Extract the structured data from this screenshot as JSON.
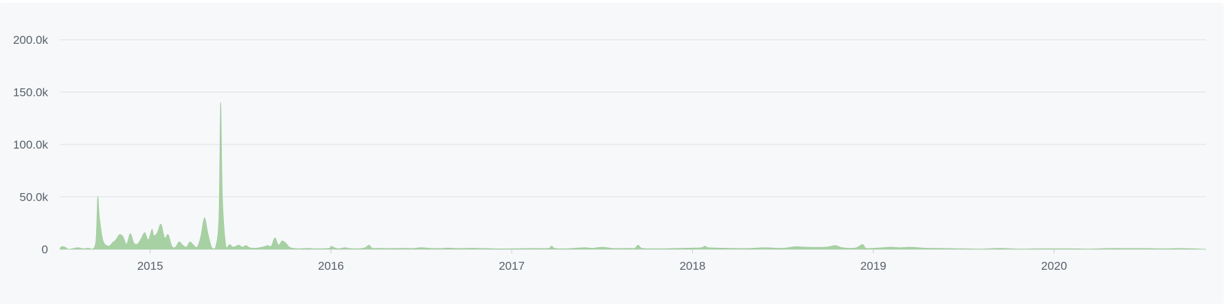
{
  "chart_data": {
    "type": "area",
    "title": "",
    "xlabel": "",
    "ylabel": "",
    "color": "#a8d1a3",
    "grid": true,
    "legend": "none",
    "xlim": [
      2014.5,
      2020.84
    ],
    "ylim": [
      0,
      200000
    ],
    "yticks": [
      {
        "value": 0,
        "label": "0"
      },
      {
        "value": 50000,
        "label": "50.0k"
      },
      {
        "value": 100000,
        "label": "100.0k"
      },
      {
        "value": 150000,
        "label": "150.0k"
      },
      {
        "value": 200000,
        "label": "200.0k"
      }
    ],
    "xticks": [
      {
        "value": 2015,
        "label": "2015"
      },
      {
        "value": 2016,
        "label": "2016"
      },
      {
        "value": 2017,
        "label": "2017"
      },
      {
        "value": 2018,
        "label": "2018"
      },
      {
        "value": 2019,
        "label": "2019"
      },
      {
        "value": 2020,
        "label": "2020"
      }
    ],
    "series": [
      {
        "points": [
          [
            2014.5,
            0
          ],
          [
            2014.51,
            2500
          ],
          [
            2014.53,
            2000
          ],
          [
            2014.55,
            0
          ],
          [
            2014.6,
            1500
          ],
          [
            2014.63,
            500
          ],
          [
            2014.66,
            1000
          ],
          [
            2014.68,
            0
          ],
          [
            2014.7,
            8000
          ],
          [
            2014.71,
            50000
          ],
          [
            2014.72,
            30000
          ],
          [
            2014.74,
            8000
          ],
          [
            2014.77,
            3000
          ],
          [
            2014.79,
            6000
          ],
          [
            2014.81,
            9000
          ],
          [
            2014.83,
            14000
          ],
          [
            2014.85,
            12000
          ],
          [
            2014.87,
            5000
          ],
          [
            2014.89,
            15000
          ],
          [
            2014.91,
            6000
          ],
          [
            2014.93,
            5000
          ],
          [
            2014.95,
            10000
          ],
          [
            2014.97,
            16000
          ],
          [
            2014.99,
            9000
          ],
          [
            2015.01,
            19000
          ],
          [
            2015.02,
            13000
          ],
          [
            2015.04,
            16000
          ],
          [
            2015.06,
            24000
          ],
          [
            2015.08,
            11000
          ],
          [
            2015.1,
            14000
          ],
          [
            2015.12,
            3000
          ],
          [
            2015.14,
            2000
          ],
          [
            2015.16,
            7000
          ],
          [
            2015.18,
            4000
          ],
          [
            2015.2,
            2000
          ],
          [
            2015.22,
            7000
          ],
          [
            2015.24,
            4000
          ],
          [
            2015.26,
            2000
          ],
          [
            2015.28,
            12000
          ],
          [
            2015.3,
            30000
          ],
          [
            2015.32,
            15000
          ],
          [
            2015.34,
            2000
          ],
          [
            2015.36,
            1000
          ],
          [
            2015.38,
            30000
          ],
          [
            2015.39,
            140000
          ],
          [
            2015.4,
            50000
          ],
          [
            2015.42,
            2000
          ],
          [
            2015.44,
            4500
          ],
          [
            2015.46,
            2000
          ],
          [
            2015.49,
            4000
          ],
          [
            2015.51,
            2000
          ],
          [
            2015.53,
            3500
          ],
          [
            2015.55,
            1500
          ],
          [
            2015.58,
            1000
          ],
          [
            2015.62,
            2000
          ],
          [
            2015.65,
            3500
          ],
          [
            2015.67,
            3000
          ],
          [
            2015.69,
            11000
          ],
          [
            2015.71,
            4000
          ],
          [
            2015.73,
            8000
          ],
          [
            2015.75,
            6000
          ],
          [
            2015.77,
            2000
          ],
          [
            2015.79,
            1000
          ],
          [
            2015.83,
            500
          ],
          [
            2015.87,
            1000
          ],
          [
            2015.91,
            500
          ],
          [
            2015.99,
            1000
          ],
          [
            2016.0,
            3000
          ],
          [
            2016.02,
            1500
          ],
          [
            2016.04,
            500
          ],
          [
            2016.08,
            1500
          ],
          [
            2016.1,
            800
          ],
          [
            2016.15,
            500
          ],
          [
            2016.19,
            1500
          ],
          [
            2016.21,
            4000
          ],
          [
            2016.23,
            1000
          ],
          [
            2016.27,
            1000
          ],
          [
            2016.33,
            800
          ],
          [
            2016.4,
            1000
          ],
          [
            2016.45,
            800
          ],
          [
            2016.5,
            1500
          ],
          [
            2016.55,
            1000
          ],
          [
            2016.6,
            800
          ],
          [
            2016.65,
            1200
          ],
          [
            2016.7,
            800
          ],
          [
            2016.8,
            1000
          ],
          [
            2016.9,
            500
          ],
          [
            2017.0,
            500
          ],
          [
            2017.1,
            800
          ],
          [
            2017.2,
            800
          ],
          [
            2017.22,
            3000
          ],
          [
            2017.24,
            800
          ],
          [
            2017.3,
            500
          ],
          [
            2017.4,
            1500
          ],
          [
            2017.45,
            1000
          ],
          [
            2017.5,
            2000
          ],
          [
            2017.55,
            1000
          ],
          [
            2017.6,
            800
          ],
          [
            2017.65,
            1000
          ],
          [
            2017.68,
            1000
          ],
          [
            2017.7,
            4000
          ],
          [
            2017.72,
            1000
          ],
          [
            2017.8,
            500
          ],
          [
            2017.9,
            800
          ],
          [
            2018.0,
            1200
          ],
          [
            2018.05,
            1500
          ],
          [
            2018.07,
            3000
          ],
          [
            2018.09,
            1500
          ],
          [
            2018.2,
            1000
          ],
          [
            2018.3,
            800
          ],
          [
            2018.4,
            1500
          ],
          [
            2018.5,
            1000
          ],
          [
            2018.57,
            2500
          ],
          [
            2018.63,
            2000
          ],
          [
            2018.7,
            1800
          ],
          [
            2018.75,
            2200
          ],
          [
            2018.79,
            3500
          ],
          [
            2018.83,
            1500
          ],
          [
            2018.9,
            1200
          ],
          [
            2018.94,
            4500
          ],
          [
            2018.96,
            1000
          ],
          [
            2019.0,
            1000
          ],
          [
            2019.05,
            1500
          ],
          [
            2019.1,
            2000
          ],
          [
            2019.15,
            1500
          ],
          [
            2019.2,
            2000
          ],
          [
            2019.25,
            1500
          ],
          [
            2019.3,
            1000
          ],
          [
            2019.4,
            800
          ],
          [
            2019.5,
            500
          ],
          [
            2019.6,
            300
          ],
          [
            2019.7,
            1000
          ],
          [
            2019.8,
            300
          ],
          [
            2019.9,
            500
          ],
          [
            2020.0,
            500
          ],
          [
            2020.1,
            500
          ],
          [
            2020.2,
            300
          ],
          [
            2020.3,
            800
          ],
          [
            2020.4,
            800
          ],
          [
            2020.5,
            800
          ],
          [
            2020.6,
            500
          ],
          [
            2020.7,
            800
          ],
          [
            2020.8,
            300
          ],
          [
            2020.84,
            0
          ]
        ]
      }
    ]
  }
}
